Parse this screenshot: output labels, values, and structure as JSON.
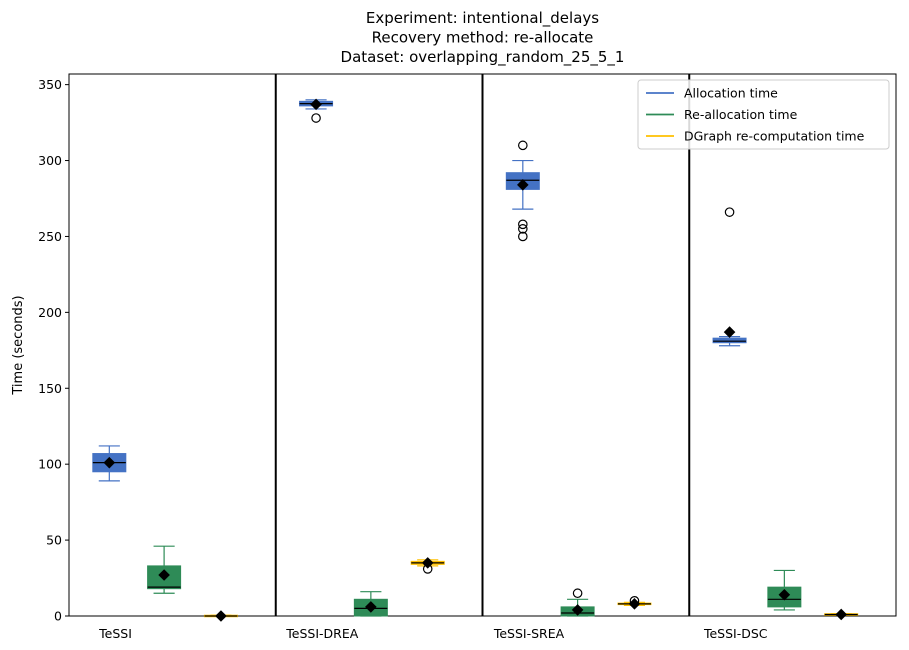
{
  "chart_data": {
    "type": "boxplot",
    "title_lines": [
      "Experiment: intentional_delays",
      "Recovery method: re-allocate",
      "Dataset: overlapping_random_25_5_1"
    ],
    "xlabel": "",
    "ylabel": "Time (seconds)",
    "ylim": [
      0,
      357
    ],
    "yticks": [
      0,
      50,
      100,
      150,
      200,
      250,
      300,
      350
    ],
    "grid": false,
    "legend_position": "top-right",
    "groups": [
      "TeSSI",
      "TeSSI-DREA",
      "TeSSI-SREA",
      "TeSSI-DSC"
    ],
    "series": [
      {
        "name": "Allocation time",
        "color": "#4472c4",
        "boxes": [
          {
            "whisker_low": 89,
            "q1": 95,
            "median": 101,
            "q3": 107,
            "whisker_high": 112,
            "mean": 101,
            "outliers": []
          },
          {
            "whisker_low": 334,
            "q1": 336,
            "median": 337.5,
            "q3": 339,
            "whisker_high": 340,
            "mean": 337,
            "outliers": [
              328
            ]
          },
          {
            "whisker_low": 268,
            "q1": 281,
            "median": 287,
            "q3": 292,
            "whisker_high": 300,
            "mean": 284,
            "outliers": [
              310,
              258,
              255,
              250
            ]
          },
          {
            "whisker_low": 178,
            "q1": 180,
            "median": 181,
            "q3": 183,
            "whisker_high": 184,
            "mean": 187,
            "outliers": [
              266
            ]
          }
        ]
      },
      {
        "name": "Re-allocation time",
        "color": "#2e8b57",
        "boxes": [
          {
            "whisker_low": 15,
            "q1": 18,
            "median": 19,
            "q3": 33,
            "whisker_high": 46,
            "mean": 27,
            "outliers": []
          },
          {
            "whisker_low": 0,
            "q1": 0,
            "median": 5,
            "q3": 11,
            "whisker_high": 16,
            "mean": 6,
            "outliers": []
          },
          {
            "whisker_low": 0,
            "q1": 0,
            "median": 2,
            "q3": 6,
            "whisker_high": 11,
            "mean": 4,
            "outliers": [
              15
            ]
          },
          {
            "whisker_low": 4,
            "q1": 6,
            "median": 11,
            "q3": 19,
            "whisker_high": 30,
            "mean": 14,
            "outliers": []
          }
        ]
      },
      {
        "name": "DGraph re-computation time",
        "color": "#ffc000",
        "boxes": [
          {
            "whisker_low": 0,
            "q1": 0,
            "median": 0,
            "q3": 0.5,
            "whisker_high": 0.5,
            "mean": 0,
            "outliers": []
          },
          {
            "whisker_low": 33,
            "q1": 34,
            "median": 35,
            "q3": 36,
            "whisker_high": 37,
            "mean": 35,
            "outliers": [
              31
            ]
          },
          {
            "whisker_low": 7,
            "q1": 7.5,
            "median": 8,
            "q3": 8.5,
            "whisker_high": 9,
            "mean": 8,
            "outliers": [
              10
            ]
          },
          {
            "whisker_low": 1,
            "q1": 1,
            "median": 1,
            "q3": 1.5,
            "whisker_high": 1.5,
            "mean": 1,
            "outliers": []
          }
        ]
      }
    ]
  }
}
